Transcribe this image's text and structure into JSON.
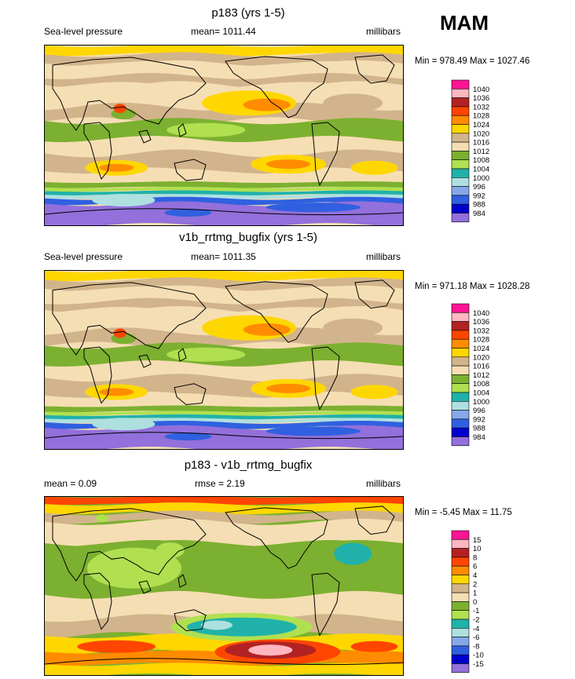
{
  "season": "MAM",
  "panels": [
    {
      "title": "p183 (yrs 1-5)",
      "left_label": "Sea-level pressure",
      "center_label": "mean= 1011.44",
      "right_label": "millibars",
      "minmax": "Min = 978.49 Max = 1027.46"
    },
    {
      "title": "v1b_rrtmg_bugfix (yrs 1-5)",
      "left_label": "Sea-level pressure",
      "center_label": "mean= 1011.35",
      "right_label": "millibars",
      "minmax": "Min = 971.18 Max = 1028.28"
    },
    {
      "title": "p183 - v1b_rrtmg_bugfix",
      "left_label": "mean =   0.09",
      "center_label": "rmse =   2.19",
      "right_label": "millibars",
      "minmax": "Min =  -5.45 Max =  11.75"
    }
  ],
  "chart_data": [
    {
      "type": "heatmap",
      "title": "p183 (yrs 1-5)",
      "variable": "Sea-level pressure",
      "units": "millibars",
      "mean": 1011.44,
      "min": 978.49,
      "max": 1027.46,
      "levels": [
        "1040",
        "1036",
        "1032",
        "1028",
        "1024",
        "1020",
        "1016",
        "1012",
        "1008",
        "1004",
        "1000",
        "996",
        "992",
        "988",
        "984"
      ],
      "colors": [
        "#ff1493",
        "#ffb6c1",
        "#b22222",
        "#ff4500",
        "#ff8c00",
        "#ffd700",
        "#d2b48c",
        "#f5deb3",
        "#7cb030",
        "#b0e050",
        "#20b2aa",
        "#aee0e0",
        "#87a8e8",
        "#3060e0",
        "#0000cd",
        "#9370db"
      ]
    },
    {
      "type": "heatmap",
      "title": "v1b_rrtmg_bugfix (yrs 1-5)",
      "variable": "Sea-level pressure",
      "units": "millibars",
      "mean": 1011.35,
      "min": 971.18,
      "max": 1028.28,
      "levels": [
        "1040",
        "1036",
        "1032",
        "1028",
        "1024",
        "1020",
        "1016",
        "1012",
        "1008",
        "1004",
        "1000",
        "996",
        "992",
        "988",
        "984"
      ],
      "colors": [
        "#ff1493",
        "#ffb6c1",
        "#b22222",
        "#ff4500",
        "#ff8c00",
        "#ffd700",
        "#d2b48c",
        "#f5deb3",
        "#7cb030",
        "#b0e050",
        "#20b2aa",
        "#aee0e0",
        "#87a8e8",
        "#3060e0",
        "#0000cd",
        "#9370db"
      ]
    },
    {
      "type": "heatmap",
      "title": "p183 - v1b_rrtmg_bugfix",
      "units": "millibars",
      "mean": 0.09,
      "rmse": 2.19,
      "min": -5.45,
      "max": 11.75,
      "levels": [
        "15",
        "10",
        "8",
        "6",
        "4",
        "2",
        "1",
        "0",
        "-1",
        "-2",
        "-4",
        "-6",
        "-8",
        "-10",
        "-15"
      ],
      "colors": [
        "#ff1493",
        "#ffb6c1",
        "#b22222",
        "#ff4500",
        "#ff8c00",
        "#ffd700",
        "#d2b48c",
        "#f5deb3",
        "#7cb030",
        "#b0e050",
        "#20b2aa",
        "#aee0e0",
        "#87a8e8",
        "#3060e0",
        "#0000cd",
        "#9370db"
      ]
    }
  ]
}
